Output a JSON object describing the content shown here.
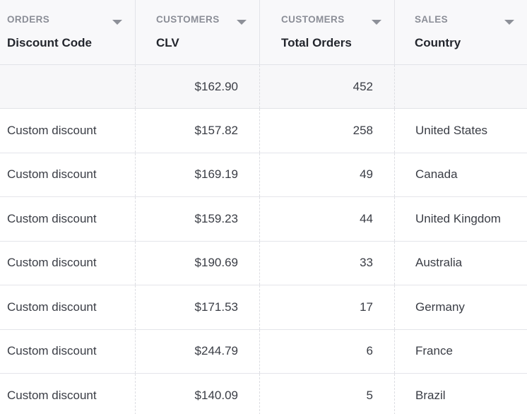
{
  "header": {
    "columns": [
      {
        "group": "ORDERS",
        "label": "Discount Code"
      },
      {
        "group": "CUSTOMERS",
        "label": "CLV"
      },
      {
        "group": "CUSTOMERS",
        "label": "Total Orders"
      },
      {
        "group": "SALES",
        "label": "Country"
      }
    ]
  },
  "summary": {
    "discount_code": "",
    "clv": "$162.90",
    "total_orders": "452",
    "country": ""
  },
  "rows": [
    {
      "discount_code": "Custom discount",
      "clv": "$157.82",
      "total_orders": "258",
      "country": "United States"
    },
    {
      "discount_code": "Custom discount",
      "clv": "$169.19",
      "total_orders": "49",
      "country": "Canada"
    },
    {
      "discount_code": "Custom discount",
      "clv": "$159.23",
      "total_orders": "44",
      "country": "United Kingdom"
    },
    {
      "discount_code": "Custom discount",
      "clv": "$190.69",
      "total_orders": "33",
      "country": "Australia"
    },
    {
      "discount_code": "Custom discount",
      "clv": "$171.53",
      "total_orders": "17",
      "country": "Germany"
    },
    {
      "discount_code": "Custom discount",
      "clv": "$244.79",
      "total_orders": "6",
      "country": "France"
    },
    {
      "discount_code": "Custom discount",
      "clv": "$140.09",
      "total_orders": "5",
      "country": "Brazil"
    }
  ],
  "colors": {
    "header_bg": "#f8f8fa",
    "border": "#e2e3e8",
    "text": "#3a3d45",
    "group_label": "#8b8e97",
    "sort_icon": "#8d9098"
  },
  "icons": {
    "sort": "chevron-down-icon"
  }
}
